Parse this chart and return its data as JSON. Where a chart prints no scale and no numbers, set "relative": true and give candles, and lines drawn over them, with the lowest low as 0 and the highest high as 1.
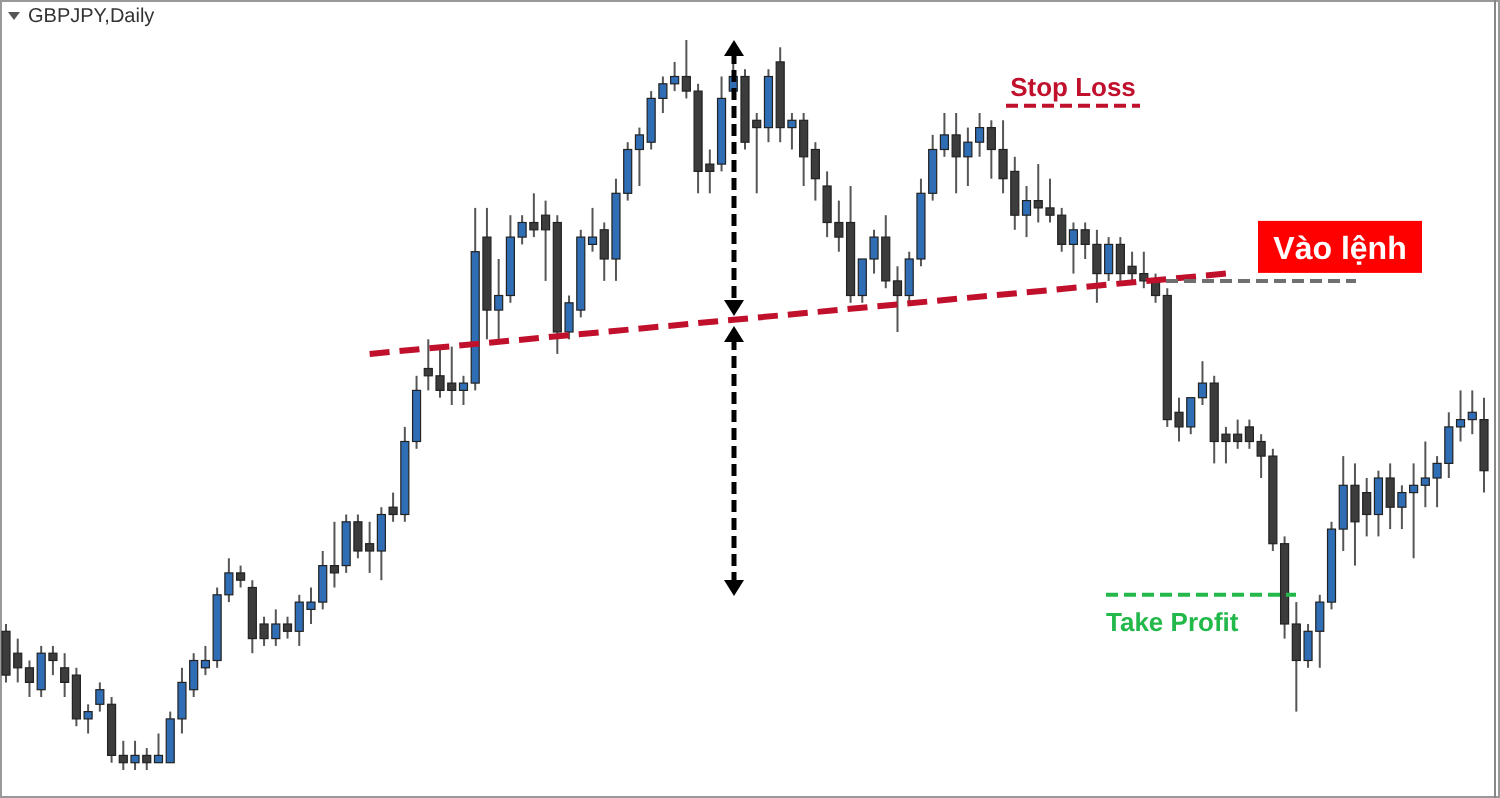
{
  "chart_data": {
    "type": "candlestick",
    "title": "GBPJPY,Daily",
    "relative": true,
    "colors": [
      "#3c3c3c",
      "#3c3c3c",
      "#3c3c3c",
      "#2f6db5",
      "#3c3c3c",
      "#3c3c3c",
      "#3c3c3c",
      "#2f6db5",
      "#2f6db5",
      "#3c3c3c",
      "#3c3c3c",
      "#2f6db5",
      "#3c3c3c",
      "#2f6db5",
      "#2f6db5",
      "#2f6db5",
      "#2f6db5",
      "#2f6db5",
      "#2f6db5",
      "#2f6db5",
      "#3c3c3c",
      "#3c3c3c",
      "#3c3c3c",
      "#2f6db5",
      "#3c3c3c",
      "#2f6db5",
      "#2f6db5",
      "#2f6db5",
      "#3c3c3c",
      "#2f6db5",
      "#3c3c3c",
      "#3c3c3c",
      "#2f6db5",
      "#3c3c3c",
      "#2f6db5",
      "#2f6db5",
      "#3c3c3c",
      "#3c3c3c",
      "#3c3c3c",
      "#2f6db5",
      "#2f6db5",
      "#3c3c3c",
      "#2f6db5",
      "#2f6db5",
      "#2f6db5",
      "#3c3c3c",
      "#3c3c3c",
      "#3c3c3c",
      "#2f6db5",
      "#2f6db5",
      "#2f6db5",
      "#3c3c3c",
      "#2f6db5",
      "#2f6db5",
      "#2f6db5",
      "#2f6db5",
      "#2f6db5",
      "#2f6db5",
      "#3c3c3c",
      "#3c3c3c",
      "#3c3c3c",
      "#2f6db5",
      "#2f6db5",
      "#3c3c3c",
      "#3c3c3c",
      "#2f6db5",
      "#3c3c3c",
      "#2f6db5",
      "#3c3c3c",
      "#3c3c3c",
      "#3c3c3c",
      "#3c3c3c",
      "#3c3c3c",
      "#2f6db5",
      "#2f6db5",
      "#3c3c3c",
      "#3c3c3c",
      "#2f6db5",
      "#2f6db5",
      "#2f6db5",
      "#2f6db5",
      "#3c3c3c",
      "#2f6db5",
      "#2f6db5",
      "#3c3c3c",
      "#3c3c3c",
      "#3c3c3c",
      "#2f6db5",
      "#3c3c3c",
      "#3c3c3c",
      "#3c3c3c",
      "#2f6db5",
      "#3c3c3c",
      "#3c3c3c",
      "#2f6db5",
      "#3c3c3c",
      "#3c3c3c",
      "#3c3c3c",
      "#3c3c3c",
      "#3c3c3c",
      "#3c3c3c",
      "#2f6db5",
      "#2f6db5",
      "#3c3c3c",
      "#3c3c3c",
      "#3c3c3c",
      "#3c3c3c",
      "#3c3c3c",
      "#3c3c3c",
      "#3c3c3c",
      "#3c3c3c",
      "#2f6db5",
      "#2f6db5",
      "#2f6db5",
      "#2f6db5",
      "#3c3c3c",
      "#3c3c3c",
      "#2f6db5",
      "#3c3c3c",
      "#2f6db5",
      "#2f6db5",
      "#2f6db5",
      "#2f6db5",
      "#2f6db5",
      "#2f6db5",
      "#2f6db5",
      "#3c3c3c"
    ],
    "categories": [
      null,
      null,
      null,
      null,
      null,
      null,
      null,
      null,
      null,
      null,
      null,
      null,
      null,
      null,
      null,
      null,
      null,
      null,
      null,
      null,
      null,
      null,
      null,
      null,
      null,
      null,
      null,
      null,
      null,
      null,
      null,
      null,
      null,
      null,
      null,
      null,
      null,
      null,
      null,
      null,
      null,
      null,
      null,
      null,
      null,
      null,
      null,
      null,
      null,
      null,
      null,
      null,
      null,
      null,
      null,
      null,
      null,
      null,
      null,
      null,
      null,
      null,
      null,
      null,
      null,
      null,
      null,
      null,
      null,
      null,
      null,
      null,
      null,
      null,
      null,
      null,
      null,
      null,
      null,
      null,
      null,
      null,
      null,
      null,
      null,
      null,
      null,
      null,
      null,
      null,
      null,
      null,
      null,
      null,
      null,
      null,
      null,
      null,
      null,
      null,
      null,
      null,
      null,
      null,
      null,
      null,
      null,
      null,
      null,
      null,
      null,
      null,
      null,
      null,
      null,
      null,
      null,
      null,
      null,
      null,
      null,
      null,
      null,
      null,
      null,
      null,
      null
    ],
    "ohlc": [
      [
        0.19,
        0.2,
        0.12,
        0.13
      ],
      [
        0.16,
        0.18,
        0.12,
        0.14
      ],
      [
        0.14,
        0.15,
        0.1,
        0.12
      ],
      [
        0.11,
        0.17,
        0.1,
        0.16
      ],
      [
        0.16,
        0.17,
        0.13,
        0.15
      ],
      [
        0.14,
        0.16,
        0.1,
        0.12
      ],
      [
        0.13,
        0.14,
        0.06,
        0.07
      ],
      [
        0.07,
        0.09,
        0.05,
        0.08
      ],
      [
        0.09,
        0.12,
        0.08,
        0.11
      ],
      [
        0.09,
        0.1,
        0.01,
        0.02
      ],
      [
        0.02,
        0.04,
        0,
        0.01
      ],
      [
        0.01,
        0.04,
        0,
        0.02
      ],
      [
        0.02,
        0.03,
        0,
        0.01
      ],
      [
        0.01,
        0.05,
        0.01,
        0.02
      ],
      [
        0.01,
        0.08,
        0.01,
        0.07
      ],
      [
        0.07,
        0.14,
        0.05,
        0.12
      ],
      [
        0.11,
        0.16,
        0.1,
        0.15
      ],
      [
        0.14,
        0.17,
        0.13,
        0.15
      ],
      [
        0.15,
        0.25,
        0.14,
        0.24
      ],
      [
        0.24,
        0.29,
        0.23,
        0.27
      ],
      [
        0.27,
        0.28,
        0.25,
        0.26
      ],
      [
        0.25,
        0.26,
        0.16,
        0.18
      ],
      [
        0.2,
        0.21,
        0.17,
        0.18
      ],
      [
        0.18,
        0.22,
        0.17,
        0.2
      ],
      [
        0.2,
        0.21,
        0.18,
        0.19
      ],
      [
        0.19,
        0.24,
        0.17,
        0.23
      ],
      [
        0.22,
        0.25,
        0.2,
        0.23
      ],
      [
        0.23,
        0.3,
        0.22,
        0.28
      ],
      [
        0.28,
        0.34,
        0.25,
        0.27
      ],
      [
        0.28,
        0.35,
        0.27,
        0.34
      ],
      [
        0.34,
        0.35,
        0.29,
        0.3
      ],
      [
        0.31,
        0.34,
        0.27,
        0.3
      ],
      [
        0.3,
        0.36,
        0.26,
        0.35
      ],
      [
        0.36,
        0.38,
        0.34,
        0.35
      ],
      [
        0.35,
        0.47,
        0.34,
        0.45
      ],
      [
        0.45,
        0.54,
        0.44,
        0.52
      ],
      [
        0.55,
        0.59,
        0.52,
        0.54
      ],
      [
        0.54,
        0.58,
        0.51,
        0.52
      ],
      [
        0.53,
        0.58,
        0.5,
        0.52
      ],
      [
        0.52,
        0.54,
        0.5,
        0.53
      ],
      [
        0.53,
        0.77,
        0.52,
        0.71
      ],
      [
        0.73,
        0.77,
        0.59,
        0.63
      ],
      [
        0.63,
        0.7,
        0.59,
        0.65
      ],
      [
        0.65,
        0.76,
        0.64,
        0.73
      ],
      [
        0.73,
        0.76,
        0.72,
        0.75
      ],
      [
        0.75,
        0.79,
        0.73,
        0.74
      ],
      [
        0.76,
        0.78,
        0.67,
        0.74
      ],
      [
        0.75,
        0.76,
        0.57,
        0.6
      ],
      [
        0.6,
        0.65,
        0.59,
        0.64
      ],
      [
        0.63,
        0.74,
        0.62,
        0.73
      ],
      [
        0.72,
        0.77,
        0.71,
        0.73
      ],
      [
        0.74,
        0.75,
        0.67,
        0.7
      ],
      [
        0.7,
        0.81,
        0.67,
        0.79
      ],
      [
        0.79,
        0.86,
        0.78,
        0.85
      ],
      [
        0.85,
        0.88,
        0.8,
        0.87
      ],
      [
        0.86,
        0.93,
        0.85,
        0.92
      ],
      [
        0.92,
        0.95,
        0.9,
        0.94
      ],
      [
        0.94,
        0.97,
        0.93,
        0.95
      ],
      [
        0.95,
        1,
        0.92,
        0.93
      ],
      [
        0.93,
        0.94,
        0.79,
        0.82
      ],
      [
        0.83,
        0.85,
        0.79,
        0.82
      ],
      [
        0.83,
        0.95,
        0.82,
        0.92
      ],
      [
        0.93,
        0.97,
        0.92,
        0.95
      ],
      [
        0.95,
        0.96,
        0.85,
        0.86
      ],
      [
        0.89,
        0.9,
        0.79,
        0.88
      ],
      [
        0.88,
        0.96,
        0.86,
        0.95
      ],
      [
        0.97,
        0.99,
        0.86,
        0.88
      ],
      [
        0.88,
        0.9,
        0.85,
        0.89
      ],
      [
        0.89,
        0.9,
        0.8,
        0.84
      ],
      [
        0.85,
        0.86,
        0.78,
        0.81
      ],
      [
        0.8,
        0.82,
        0.73,
        0.75
      ],
      [
        0.75,
        0.78,
        0.71,
        0.73
      ],
      [
        0.75,
        0.8,
        0.64,
        0.65
      ],
      [
        0.65,
        0.7,
        0.64,
        0.7
      ],
      [
        0.7,
        0.74,
        0.68,
        0.73
      ],
      [
        0.73,
        0.76,
        0.66,
        0.67
      ],
      [
        0.67,
        0.69,
        0.6,
        0.65
      ],
      [
        0.65,
        0.71,
        0.64,
        0.7
      ],
      [
        0.7,
        0.81,
        0.69,
        0.79
      ],
      [
        0.79,
        0.87,
        0.78,
        0.85
      ],
      [
        0.85,
        0.9,
        0.84,
        0.87
      ],
      [
        0.87,
        0.9,
        0.79,
        0.84
      ],
      [
        0.84,
        0.88,
        0.8,
        0.86
      ],
      [
        0.86,
        0.9,
        0.84,
        0.88
      ],
      [
        0.88,
        0.89,
        0.81,
        0.85
      ],
      [
        0.85,
        0.89,
        0.79,
        0.81
      ],
      [
        0.82,
        0.84,
        0.74,
        0.76
      ],
      [
        0.76,
        0.8,
        0.73,
        0.78
      ],
      [
        0.78,
        0.83,
        0.75,
        0.77
      ],
      [
        0.77,
        0.81,
        0.75,
        0.76
      ],
      [
        0.76,
        0.77,
        0.71,
        0.72
      ],
      [
        0.72,
        0.75,
        0.68,
        0.74
      ],
      [
        0.74,
        0.75,
        0.7,
        0.72
      ],
      [
        0.72,
        0.74,
        0.64,
        0.68
      ],
      [
        0.68,
        0.73,
        0.67,
        0.72
      ],
      [
        0.72,
        0.73,
        0.67,
        0.68
      ],
      [
        0.69,
        0.71,
        0.67,
        0.68
      ],
      [
        0.68,
        0.71,
        0.66,
        0.67
      ],
      [
        0.67,
        0.68,
        0.64,
        0.65
      ],
      [
        0.65,
        0.66,
        0.47,
        0.48
      ],
      [
        0.49,
        0.51,
        0.45,
        0.47
      ],
      [
        0.47,
        0.51,
        0.46,
        0.51
      ],
      [
        0.51,
        0.56,
        0.5,
        0.53
      ],
      [
        0.53,
        0.54,
        0.42,
        0.45
      ],
      [
        0.46,
        0.47,
        0.42,
        0.45
      ],
      [
        0.46,
        0.48,
        0.44,
        0.45
      ],
      [
        0.47,
        0.48,
        0.44,
        0.45
      ],
      [
        0.45,
        0.46,
        0.4,
        0.43
      ],
      [
        0.43,
        0.44,
        0.3,
        0.31
      ],
      [
        0.31,
        0.32,
        0.18,
        0.2
      ],
      [
        0.2,
        0.23,
        0.08,
        0.15
      ],
      [
        0.15,
        0.2,
        0.14,
        0.19
      ],
      [
        0.19,
        0.24,
        0.14,
        0.23
      ],
      [
        0.23,
        0.34,
        0.22,
        0.33
      ],
      [
        0.33,
        0.43,
        0.3,
        0.39
      ],
      [
        0.39,
        0.42,
        0.28,
        0.34
      ],
      [
        0.38,
        0.4,
        0.32,
        0.35
      ],
      [
        0.35,
        0.41,
        0.32,
        0.4
      ],
      [
        0.4,
        0.42,
        0.33,
        0.36
      ],
      [
        0.36,
        0.39,
        0.33,
        0.38
      ],
      [
        0.38,
        0.42,
        0.29,
        0.39
      ],
      [
        0.39,
        0.45,
        0.36,
        0.4
      ],
      [
        0.4,
        0.43,
        0.36,
        0.42
      ],
      [
        0.42,
        0.49,
        0.4,
        0.47
      ],
      [
        0.47,
        0.52,
        0.45,
        0.48
      ],
      [
        0.48,
        0.52,
        0.46,
        0.49
      ],
      [
        0.48,
        0.51,
        0.38,
        0.41
      ]
    ],
    "series": [
      {
        "type": "line",
        "color": "#c0102c",
        "line_style": "dashed",
        "values": [
          null,
          null,
          null,
          null,
          null,
          null,
          null,
          null,
          null,
          null,
          null,
          null,
          null,
          null,
          null,
          null,
          null,
          null,
          null,
          null,
          null,
          null,
          null,
          null,
          null,
          null,
          null,
          null,
          null,
          null,
          null,
          0.57,
          null,
          null,
          null,
          null,
          null,
          null,
          null,
          null,
          null,
          null,
          null,
          null,
          null,
          null,
          null,
          null,
          null,
          null,
          null,
          null,
          null,
          null,
          null,
          null,
          null,
          null,
          null,
          null,
          null,
          null,
          null,
          null,
          null,
          null,
          null,
          null,
          null,
          null,
          null,
          null,
          null,
          null,
          null,
          null,
          null,
          null,
          null,
          null,
          null,
          null,
          null,
          null,
          null,
          null,
          null,
          null,
          null,
          null,
          null,
          null,
          null,
          null,
          null,
          null,
          null,
          null,
          null,
          null,
          null,
          null,
          null,
          null,
          0.68,
          null,
          null,
          null,
          null,
          null,
          null,
          null,
          null,
          null,
          null,
          null,
          null,
          null,
          null,
          null,
          null,
          null,
          null,
          null,
          null,
          null,
          null
        ]
      }
    ],
    "ref_lines": [
      {
        "axis": "y",
        "value": 0.91,
        "label": "Stop Loss",
        "color": "#c0102c",
        "line_style": "dashed"
      },
      {
        "axis": "y",
        "value": 0.67,
        "label": "Vào lệnh",
        "color": "#707070",
        "line_style": "dashed"
      },
      {
        "axis": "y",
        "value": 0.24,
        "label": "Take Profit",
        "color": "#22b84a",
        "line_style": "dashed"
      }
    ]
  }
}
